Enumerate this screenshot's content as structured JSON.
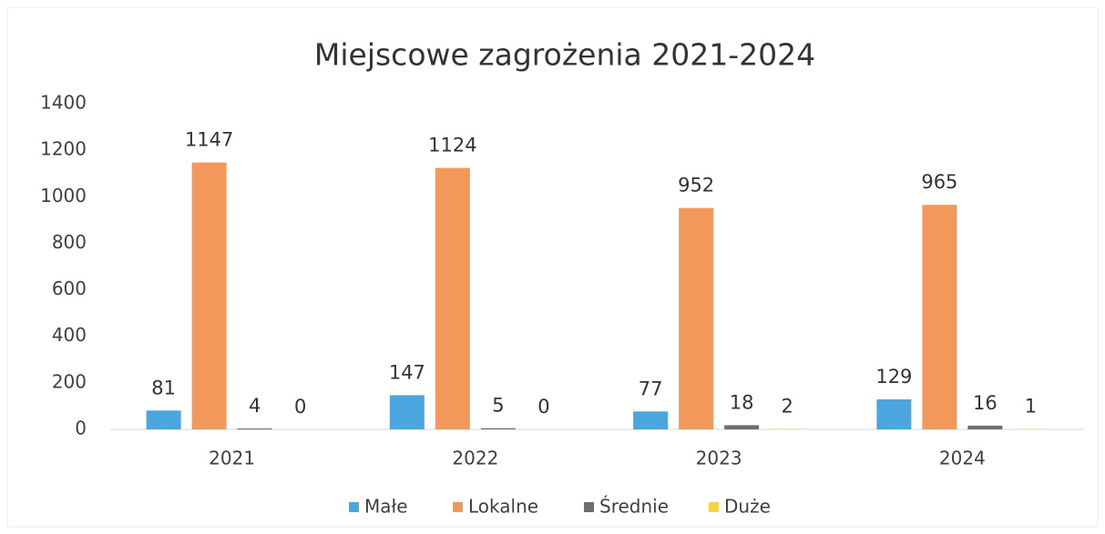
{
  "chart_data": {
    "type": "bar",
    "title": "Miejscowe zagrożenia 2021-2024",
    "categories": [
      "2021",
      "2022",
      "2023",
      "2024"
    ],
    "series": [
      {
        "name": "Małe",
        "color": "#4ba6e0",
        "values": [
          81,
          147,
          77,
          129
        ]
      },
      {
        "name": "Lokalne",
        "color": "#f2985a",
        "values": [
          1147,
          1124,
          952,
          965
        ]
      },
      {
        "name": "Średnie",
        "color": "#6e6e6e",
        "values": [
          4,
          5,
          18,
          16
        ]
      },
      {
        "name": "Duże",
        "color": "#f3d34a",
        "values": [
          0,
          0,
          2,
          1
        ]
      }
    ],
    "ylim": [
      0,
      1400
    ],
    "yticks": [
      0,
      200,
      400,
      600,
      800,
      1000,
      1200,
      1400
    ],
    "grid": false,
    "legend": "bottom"
  }
}
